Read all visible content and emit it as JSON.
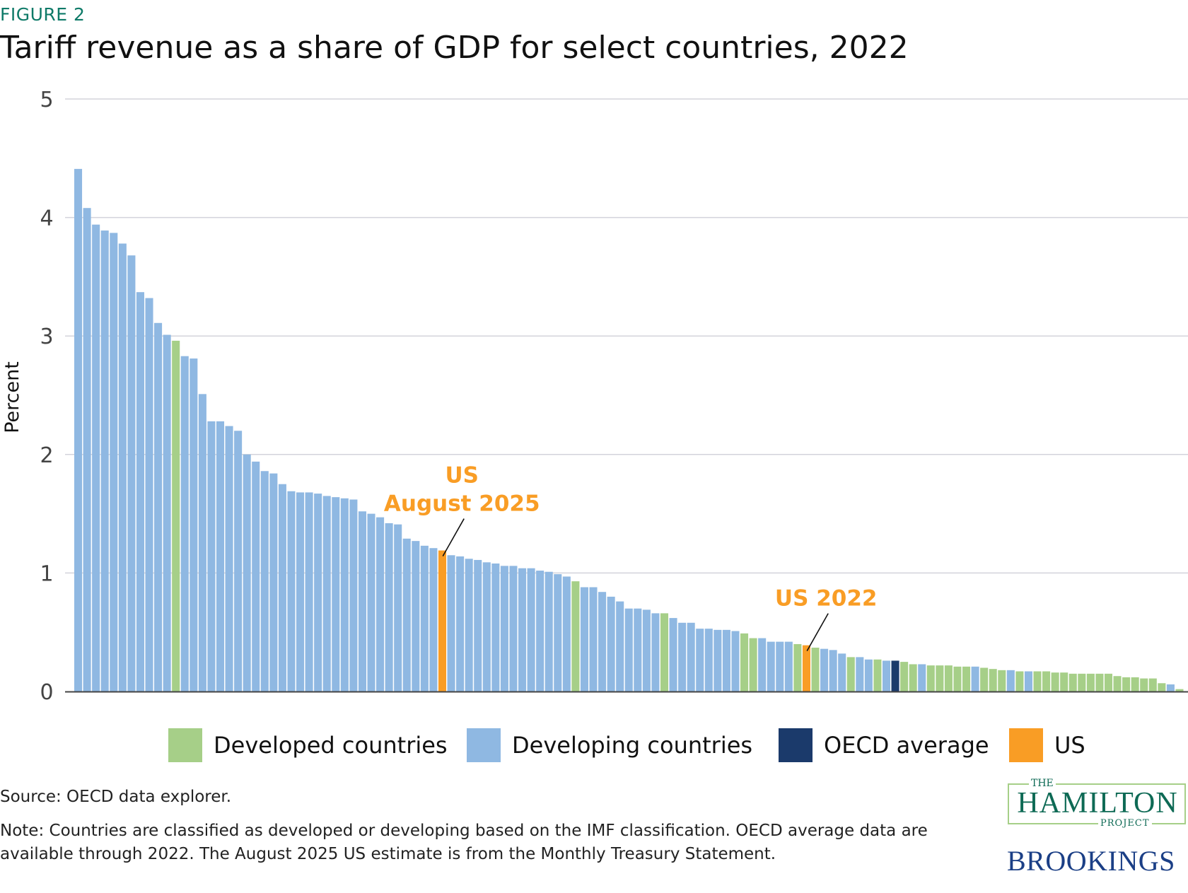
{
  "header": {
    "figure_label": "FIGURE 2",
    "title": "Tariff revenue as a share of GDP for select countries, 2022"
  },
  "chart_data": {
    "type": "bar",
    "title": "Tariff revenue as a share of GDP for select countries, 2022",
    "xlabel": "",
    "ylabel": "Percent",
    "ylim": [
      0,
      5
    ],
    "yticks": [
      "0",
      "1",
      "2",
      "3",
      "4",
      "5"
    ],
    "grid": true,
    "legend_placement": "bottom",
    "colors": {
      "developed": "#a6cf88",
      "developing": "#8fb8e2",
      "oecd": "#1b3a6b",
      "us": "#f99d25"
    },
    "legend": [
      {
        "key": "developed",
        "label": "Developed countries"
      },
      {
        "key": "developing",
        "label": "Developing countries"
      },
      {
        "key": "oecd",
        "label": "OECD average"
      },
      {
        "key": "us",
        "label": "US"
      }
    ],
    "values": [
      4.41,
      4.08,
      3.94,
      3.89,
      3.87,
      3.78,
      3.68,
      3.37,
      3.32,
      3.11,
      3.01,
      2.96,
      2.83,
      2.81,
      2.51,
      2.28,
      2.28,
      2.24,
      2.2,
      2.0,
      1.94,
      1.86,
      1.84,
      1.75,
      1.69,
      1.68,
      1.68,
      1.67,
      1.65,
      1.64,
      1.63,
      1.62,
      1.52,
      1.5,
      1.47,
      1.42,
      1.41,
      1.29,
      1.27,
      1.23,
      1.21,
      1.19,
      1.15,
      1.14,
      1.12,
      1.11,
      1.09,
      1.08,
      1.06,
      1.06,
      1.04,
      1.04,
      1.02,
      1.01,
      0.99,
      0.97,
      0.93,
      0.88,
      0.88,
      0.84,
      0.8,
      0.76,
      0.7,
      0.7,
      0.69,
      0.66,
      0.66,
      0.62,
      0.58,
      0.58,
      0.53,
      0.53,
      0.52,
      0.52,
      0.51,
      0.49,
      0.45,
      0.45,
      0.42,
      0.42,
      0.42,
      0.4,
      0.39,
      0.37,
      0.36,
      0.35,
      0.32,
      0.29,
      0.29,
      0.27,
      0.27,
      0.26,
      0.26,
      0.25,
      0.23,
      0.23,
      0.22,
      0.22,
      0.22,
      0.21,
      0.21,
      0.21,
      0.2,
      0.19,
      0.18,
      0.18,
      0.17,
      0.17,
      0.17,
      0.17,
      0.16,
      0.16,
      0.15,
      0.15,
      0.15,
      0.15,
      0.15,
      0.13,
      0.12,
      0.12,
      0.11,
      0.11,
      0.07,
      0.06,
      0.02
    ],
    "groups": [
      "developing",
      "developing",
      "developing",
      "developing",
      "developing",
      "developing",
      "developing",
      "developing",
      "developing",
      "developing",
      "developing",
      "developed",
      "developing",
      "developing",
      "developing",
      "developing",
      "developing",
      "developing",
      "developing",
      "developing",
      "developing",
      "developing",
      "developing",
      "developing",
      "developing",
      "developing",
      "developing",
      "developing",
      "developing",
      "developing",
      "developing",
      "developing",
      "developing",
      "developing",
      "developing",
      "developing",
      "developing",
      "developing",
      "developing",
      "developing",
      "developing",
      "us",
      "developing",
      "developing",
      "developing",
      "developing",
      "developing",
      "developing",
      "developing",
      "developing",
      "developing",
      "developing",
      "developing",
      "developing",
      "developing",
      "developing",
      "developed",
      "developing",
      "developing",
      "developing",
      "developing",
      "developing",
      "developing",
      "developing",
      "developing",
      "developing",
      "developed",
      "developing",
      "developing",
      "developing",
      "developing",
      "developing",
      "developing",
      "developing",
      "developing",
      "developed",
      "developed",
      "developing",
      "developing",
      "developing",
      "developing",
      "developed",
      "us",
      "developed",
      "developing",
      "developing",
      "developing",
      "developed",
      "developing",
      "developing",
      "developed",
      "developing",
      "oecd",
      "developed",
      "developed",
      "developing",
      "developed",
      "developed",
      "developed",
      "developed",
      "developed",
      "developing",
      "developed",
      "developed",
      "developed",
      "developing",
      "developed",
      "developing",
      "developed",
      "developed",
      "developed",
      "developed",
      "developed",
      "developed",
      "developed",
      "developed",
      "developed",
      "developed",
      "developed",
      "developed",
      "developed",
      "developed",
      "developed",
      "developing",
      "developed"
    ],
    "annotations": [
      {
        "bar_index": 41,
        "lines": [
          "US",
          "August 2025"
        ]
      },
      {
        "bar_index": 82,
        "lines": [
          "US 2022"
        ]
      }
    ]
  },
  "footer": {
    "source": "Source: OECD data explorer.",
    "note": "Note: Countries are classified as developed or developing based on the IMF classification. OECD average data are available through 2022. The August 2025 US estimate is from the Monthly Treasury Statement."
  },
  "logos": {
    "hamilton_the": "THE",
    "hamilton_name": "HAMILTON",
    "hamilton_project": "PROJECT",
    "brookings": "BROOKINGS"
  }
}
